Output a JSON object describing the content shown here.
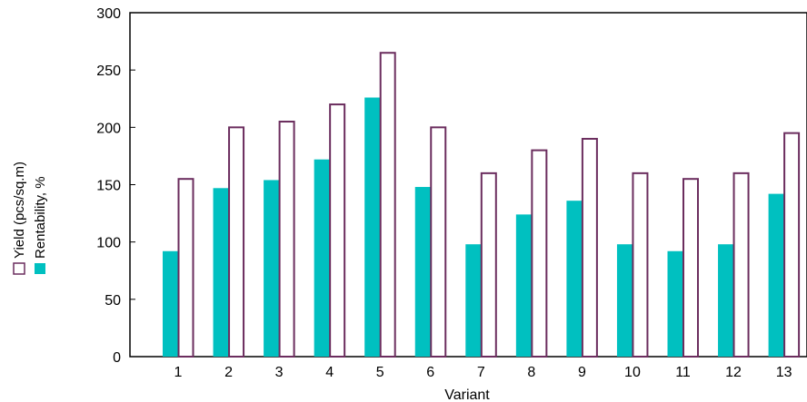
{
  "chart_data": {
    "type": "bar",
    "xlabel": "Variant",
    "ylim": [
      0,
      300
    ],
    "yticks": [
      0,
      50,
      100,
      150,
      200,
      250,
      300
    ],
    "categories": [
      "1",
      "2",
      "3",
      "4",
      "5",
      "6",
      "7",
      "8",
      "9",
      "10",
      "11",
      "12",
      "13"
    ],
    "series": [
      {
        "name": "Rentability, %",
        "style": "filled",
        "color": "#00c0c0",
        "values": [
          92,
          147,
          154,
          172,
          226,
          148,
          98,
          124,
          136,
          98,
          92,
          98,
          142
        ]
      },
      {
        "name": "Yield (pcs/sq.m)",
        "style": "outline",
        "color": "#6b2d5e",
        "values": [
          155,
          200,
          205,
          220,
          265,
          200,
          160,
          180,
          190,
          160,
          155,
          160,
          195
        ]
      }
    ],
    "grid": false,
    "legend_position": "left, rotated vertical"
  }
}
